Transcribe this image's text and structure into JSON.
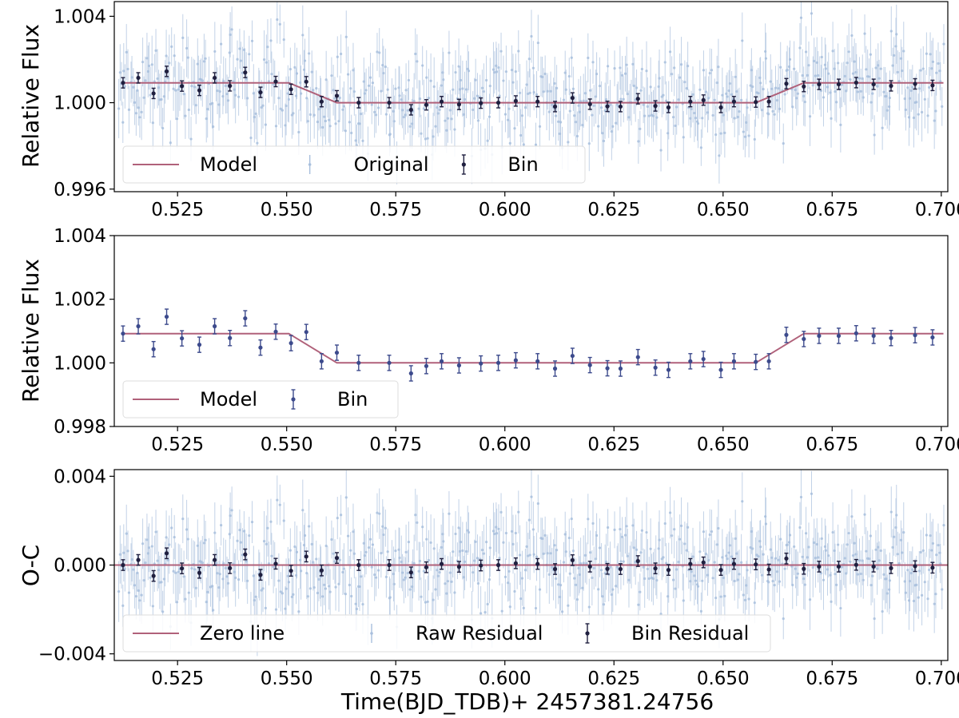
{
  "chart_data": [
    {
      "type": "scatter",
      "panel": "top",
      "ylabel": "Relative Flux",
      "xlim": [
        0.5105,
        0.7015
      ],
      "ylim": [
        0.99588,
        1.00468
      ],
      "x_ticks": [
        "0.525",
        "0.550",
        "0.575",
        "0.600",
        "0.625",
        "0.650",
        "0.675",
        "0.700"
      ],
      "y_ticks": [
        "0.996",
        "1.000",
        "1.004"
      ],
      "legend": [
        "Model",
        "Original",
        "Bin"
      ],
      "legend_position": "lower-left",
      "series": [
        {
          "name": "Model",
          "kind": "transit-model",
          "baseline": 1.00092,
          "depth": 0.00092,
          "t1": 0.5505,
          "t2": 0.5615,
          "t3": 0.6575,
          "t4": 0.6685
        },
        {
          "name": "Original",
          "kind": "raw-scatter",
          "n_points": 620,
          "scatter_sigma": 0.00115,
          "errorbar": 0.0011
        },
        {
          "name": "Bin",
          "kind": "binned",
          "x": [
            0.5125,
            0.516,
            0.5195,
            0.5225,
            0.526,
            0.53,
            0.5335,
            0.537,
            0.5405,
            0.544,
            0.5475,
            0.551,
            0.5545,
            0.558,
            0.5615,
            0.5665,
            0.5735,
            0.5785,
            0.582,
            0.5855,
            0.5895,
            0.5945,
            0.5985,
            0.6025,
            0.6075,
            0.6115,
            0.6155,
            0.6195,
            0.6235,
            0.6265,
            0.6305,
            0.6345,
            0.6375,
            0.6425,
            0.6455,
            0.6495,
            0.6525,
            0.6575,
            0.6605,
            0.6645,
            0.6685,
            0.672,
            0.6765,
            0.6805,
            0.6845,
            0.6885,
            0.694,
            0.698
          ],
          "y": [
            1.00092,
            1.00115,
            1.00043,
            1.00145,
            1.00077,
            1.00057,
            1.00115,
            1.00078,
            1.0014,
            1.00048,
            1.00098,
            1.00062,
            1.00097,
            1.00005,
            1.00032,
            1.0,
            1.0,
            0.99967,
            0.9999,
            1.00005,
            0.99992,
            0.99998,
            1.0,
            1.00008,
            1.00005,
            0.99982,
            1.00022,
            0.99993,
            0.99983,
            0.99982,
            1.00018,
            0.99985,
            0.99978,
            1.00005,
            1.00012,
            0.99978,
            1.00005,
            1.00003,
            1.00005,
            1.00088,
            1.00075,
            1.00085,
            1.00085,
            1.00093,
            1.00085,
            1.00078,
            1.00087,
            1.0008
          ],
          "errorbar": 0.00024
        }
      ]
    },
    {
      "type": "scatter",
      "panel": "middle",
      "ylabel": "Relative Flux",
      "xlim": [
        0.5105,
        0.7015
      ],
      "ylim": [
        0.998,
        1.004
      ],
      "x_ticks": [
        "0.525",
        "0.550",
        "0.575",
        "0.600",
        "0.625",
        "0.650",
        "0.675",
        "0.700"
      ],
      "y_ticks": [
        "0.998",
        "1.000",
        "1.002",
        "1.004"
      ],
      "legend": [
        "Model",
        "Bin"
      ],
      "legend_position": "lower-left",
      "series": [
        {
          "name": "Model",
          "kind": "transit-model"
        },
        {
          "name": "Bin",
          "kind": "binned",
          "same_as_top": true
        }
      ]
    },
    {
      "type": "scatter",
      "panel": "bottom",
      "ylabel": "O-C",
      "xlabel": "Time(BJD_TDB)+ 2457381.24756",
      "xlim": [
        0.5105,
        0.7015
      ],
      "ylim": [
        -0.0043,
        0.0043
      ],
      "x_ticks": [
        "0.525",
        "0.550",
        "0.575",
        "0.600",
        "0.625",
        "0.650",
        "0.675",
        "0.700"
      ],
      "y_ticks": [
        "0.004",
        "0.000",
        "−0.004"
      ],
      "legend": [
        "Zero line",
        "Raw Residual",
        "Bin Residual"
      ],
      "legend_position": "lower-left",
      "series": [
        {
          "name": "Zero line",
          "y": 0
        },
        {
          "name": "Raw Residual",
          "kind": "raw-scatter",
          "n_points": 620,
          "scatter_sigma": 0.00115,
          "errorbar": 0.0011
        },
        {
          "name": "Bin Residual",
          "kind": "binned-residual",
          "errorbar": 0.00024
        }
      ]
    }
  ],
  "colors": {
    "model": "#b0617a",
    "raw": "#a8bfdd",
    "bin_dark": "#1f1f3f",
    "bin_mid": "#3c4a8c"
  }
}
